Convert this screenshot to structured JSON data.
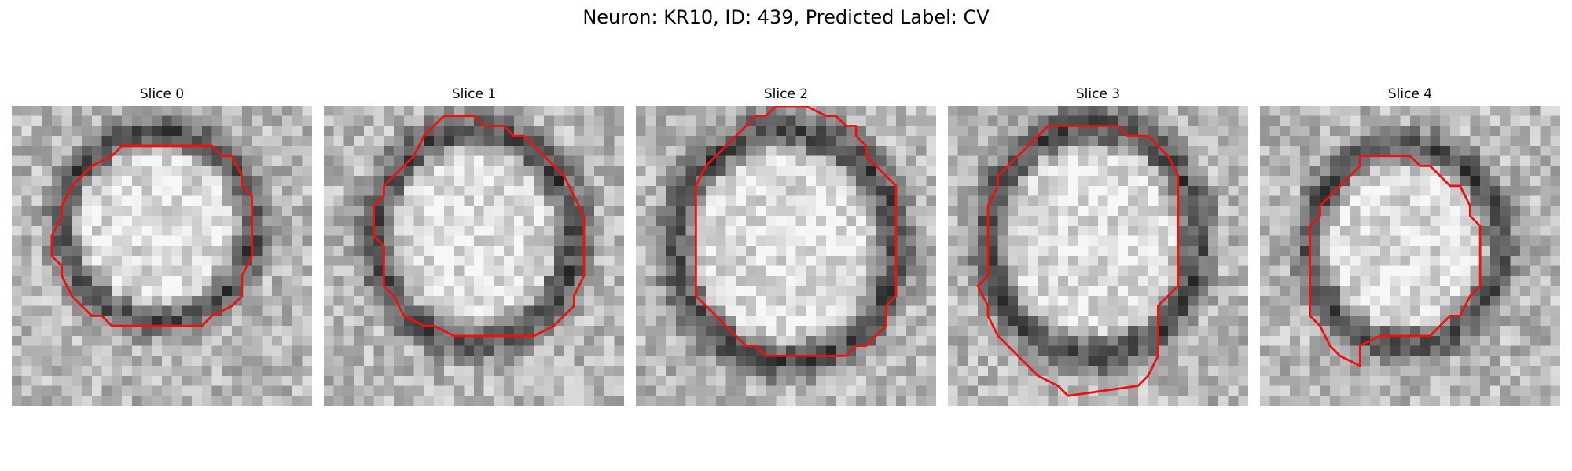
{
  "figure": {
    "title": "Neuron: KR10, ID: 439, Predicted Label: CV"
  },
  "panels": [
    {
      "title": "Slice 0",
      "seed": 11,
      "bright": 0.5,
      "dark": 0.6
    },
    {
      "title": "Slice 1",
      "seed": 23,
      "bright": 0.5,
      "dark": 0.6
    },
    {
      "title": "Slice 2",
      "seed": 37,
      "bright": 0.5,
      "dark": 0.6
    },
    {
      "title": "Slice 3",
      "seed": 53,
      "bright": 0.5,
      "dark": 0.6
    },
    {
      "title": "Slice 4",
      "seed": 71,
      "bright": 0.5,
      "dark": 0.6
    }
  ],
  "colors": {
    "contour": "#ee1111",
    "background": "#ffffff"
  },
  "image_description": "Five grayscale micrograph slices of a neuron with a red segmentation contour."
}
